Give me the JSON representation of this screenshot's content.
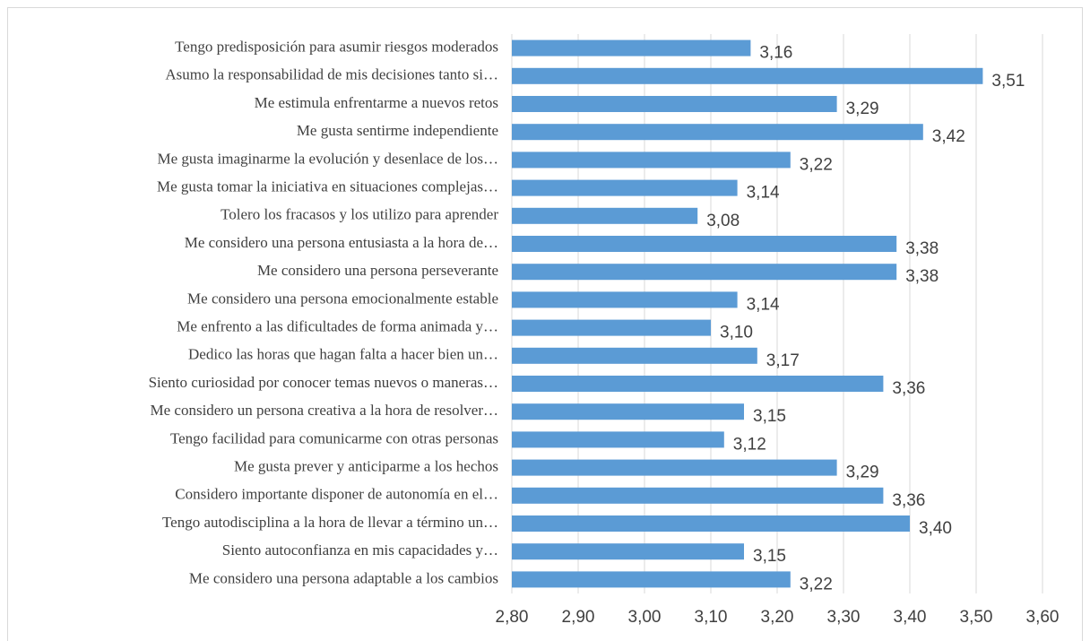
{
  "chart_data": {
    "type": "bar",
    "orientation": "horizontal",
    "color": "#5b9bd5",
    "grid": true,
    "categories": [
      "Tengo predisposición para asumir riesgos moderados",
      "Asumo la responsabilidad de mis decisiones tanto si…",
      "Me estimula enfrentarme a nuevos retos",
      "Me gusta sentirme independiente",
      "Me gusta imaginarme la evolución y desenlace de los…",
      "Me gusta tomar la iniciativa en situaciones complejas…",
      "Tolero los fracasos y los utilizo para aprender",
      "Me considero una persona entusiasta a la hora de…",
      "Me considero una persona perseverante",
      "Me considero una persona emocionalmente estable",
      "Me enfrento a las dificultades de forma animada y…",
      "Dedico las horas que hagan falta a hacer bien un…",
      "Siento curiosidad por conocer temas nuevos o maneras…",
      "Me considero un persona creativa a la hora de resolver…",
      "Tengo facilidad para comunicarme con otras personas",
      "Me gusta prever y anticiparme a los hechos",
      "Considero importante disponer de autonomía en el…",
      "Tengo autodisciplina a la hora de llevar a término un…",
      "Siento autoconfianza en mis capacidades y…",
      "Me considero una persona adaptable a los cambios"
    ],
    "values": [
      3.16,
      3.51,
      3.29,
      3.42,
      3.22,
      3.14,
      3.08,
      3.38,
      3.38,
      3.14,
      3.1,
      3.17,
      3.36,
      3.15,
      3.12,
      3.29,
      3.36,
      3.4,
      3.15,
      3.22
    ],
    "value_labels": [
      "3,16",
      "3,51",
      "3,29",
      "3,42",
      "3,22",
      "3,14",
      "3,08",
      "3,38",
      "3,38",
      "3,14",
      "3,10",
      "3,17",
      "3,36",
      "3,15",
      "3,12",
      "3,29",
      "3,36",
      "3,40",
      "3,15",
      "3,22"
    ],
    "xlim": [
      2.8,
      3.6
    ],
    "xticks": [
      {
        "value": 2.8,
        "label": "2,80"
      },
      {
        "value": 2.9,
        "label": "2,90"
      },
      {
        "value": 3.0,
        "label": "3,00"
      },
      {
        "value": 3.1,
        "label": "3,10"
      },
      {
        "value": 3.2,
        "label": "3,20"
      },
      {
        "value": 3.3,
        "label": "3,30"
      },
      {
        "value": 3.4,
        "label": "3,40"
      },
      {
        "value": 3.5,
        "label": "3,50"
      },
      {
        "value": 3.6,
        "label": "3,60"
      }
    ]
  }
}
